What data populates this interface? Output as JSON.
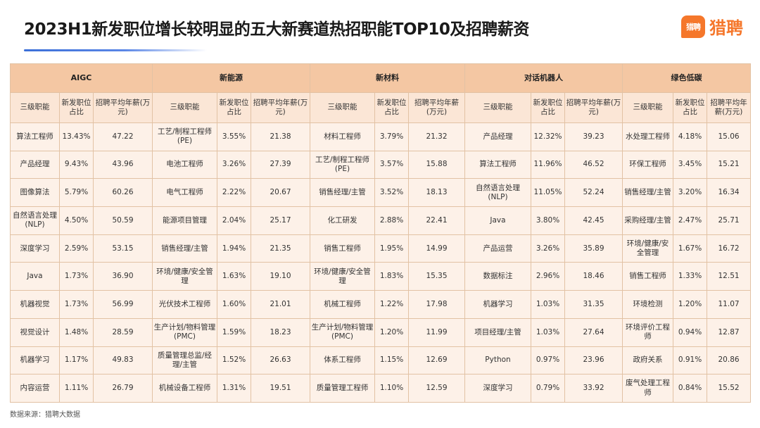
{
  "title": "2023H1新发职位增长较明显的五大新赛道热招职能TOP10及招聘薪资",
  "logo": {
    "badge": "猎聘",
    "text": "猎聘"
  },
  "colors": {
    "header": "#f4c7a3",
    "subheader": "#fbe6d6",
    "cell": "#fdf1e8",
    "brand": "#f5772b",
    "accent_line": "#3b6fd8"
  },
  "table": {
    "sectors": [
      "AIGC",
      "新能源",
      "新材料",
      "对话机器人",
      "绿色低碳"
    ],
    "subheaders": [
      "三级职能",
      "新发职位占比",
      "招聘平均年薪(万元)"
    ],
    "rows": [
      [
        [
          "算法工程师",
          "13.43%",
          "47.22"
        ],
        [
          "工艺/制程工程师(PE)",
          "3.55%",
          "21.38"
        ],
        [
          "材料工程师",
          "3.79%",
          "21.32"
        ],
        [
          "产品经理",
          "12.32%",
          "39.23"
        ],
        [
          "水处理工程师",
          "4.18%",
          "15.06"
        ]
      ],
      [
        [
          "产品经理",
          "9.43%",
          "43.96"
        ],
        [
          "电池工程师",
          "3.26%",
          "27.39"
        ],
        [
          "工艺/制程工程师(PE)",
          "3.57%",
          "15.88"
        ],
        [
          "算法工程师",
          "11.96%",
          "46.52"
        ],
        [
          "环保工程师",
          "3.45%",
          "15.21"
        ]
      ],
      [
        [
          "图像算法",
          "5.79%",
          "60.26"
        ],
        [
          "电气工程师",
          "2.22%",
          "20.67"
        ],
        [
          "销售经理/主管",
          "3.52%",
          "18.13"
        ],
        [
          "自然语言处理(NLP)",
          "11.05%",
          "52.24"
        ],
        [
          "销售经理/主管",
          "3.20%",
          "16.34"
        ]
      ],
      [
        [
          "自然语言处理(NLP)",
          "4.50%",
          "50.59"
        ],
        [
          "能源项目管理",
          "2.04%",
          "25.17"
        ],
        [
          "化工研发",
          "2.88%",
          "22.41"
        ],
        [
          "Java",
          "3.80%",
          "42.45"
        ],
        [
          "采购经理/主管",
          "2.47%",
          "25.71"
        ]
      ],
      [
        [
          "深度学习",
          "2.59%",
          "53.15"
        ],
        [
          "销售经理/主管",
          "1.94%",
          "21.35"
        ],
        [
          "销售工程师",
          "1.95%",
          "14.99"
        ],
        [
          "产品运营",
          "3.26%",
          "35.89"
        ],
        [
          "环境/健康/安全管理",
          "1.67%",
          "16.72"
        ]
      ],
      [
        [
          "Java",
          "1.73%",
          "36.90"
        ],
        [
          "环境/健康/安全管理",
          "1.63%",
          "19.10"
        ],
        [
          "环境/健康/安全管理",
          "1.83%",
          "15.35"
        ],
        [
          "数据标注",
          "2.96%",
          "18.46"
        ],
        [
          "销售工程师",
          "1.33%",
          "12.51"
        ]
      ],
      [
        [
          "机器视觉",
          "1.73%",
          "56.99"
        ],
        [
          "光伏技术工程师",
          "1.60%",
          "21.01"
        ],
        [
          "机械工程师",
          "1.22%",
          "17.98"
        ],
        [
          "机器学习",
          "1.03%",
          "31.35"
        ],
        [
          "环境检测",
          "1.20%",
          "11.07"
        ]
      ],
      [
        [
          "视觉设计",
          "1.48%",
          "28.59"
        ],
        [
          "生产计划/物料管理(PMC)",
          "1.59%",
          "18.23"
        ],
        [
          "生产计划/物料管理(PMC)",
          "1.20%",
          "11.99"
        ],
        [
          "项目经理/主管",
          "1.03%",
          "27.64"
        ],
        [
          "环境评价工程师",
          "0.94%",
          "12.87"
        ]
      ],
      [
        [
          "机器学习",
          "1.17%",
          "49.83"
        ],
        [
          "质量管理总监/经理/主管",
          "1.52%",
          "26.63"
        ],
        [
          "体系工程师",
          "1.15%",
          "12.69"
        ],
        [
          "Python",
          "0.97%",
          "23.96"
        ],
        [
          "政府关系",
          "0.91%",
          "20.86"
        ]
      ],
      [
        [
          "内容运营",
          "1.11%",
          "26.79"
        ],
        [
          "机械设备工程师",
          "1.31%",
          "19.51"
        ],
        [
          "质量管理工程师",
          "1.10%",
          "12.59"
        ],
        [
          "深度学习",
          "0.79%",
          "33.92"
        ],
        [
          "废气处理工程师",
          "0.84%",
          "15.52"
        ]
      ]
    ]
  },
  "footer": "数据来源：猎聘大数据"
}
